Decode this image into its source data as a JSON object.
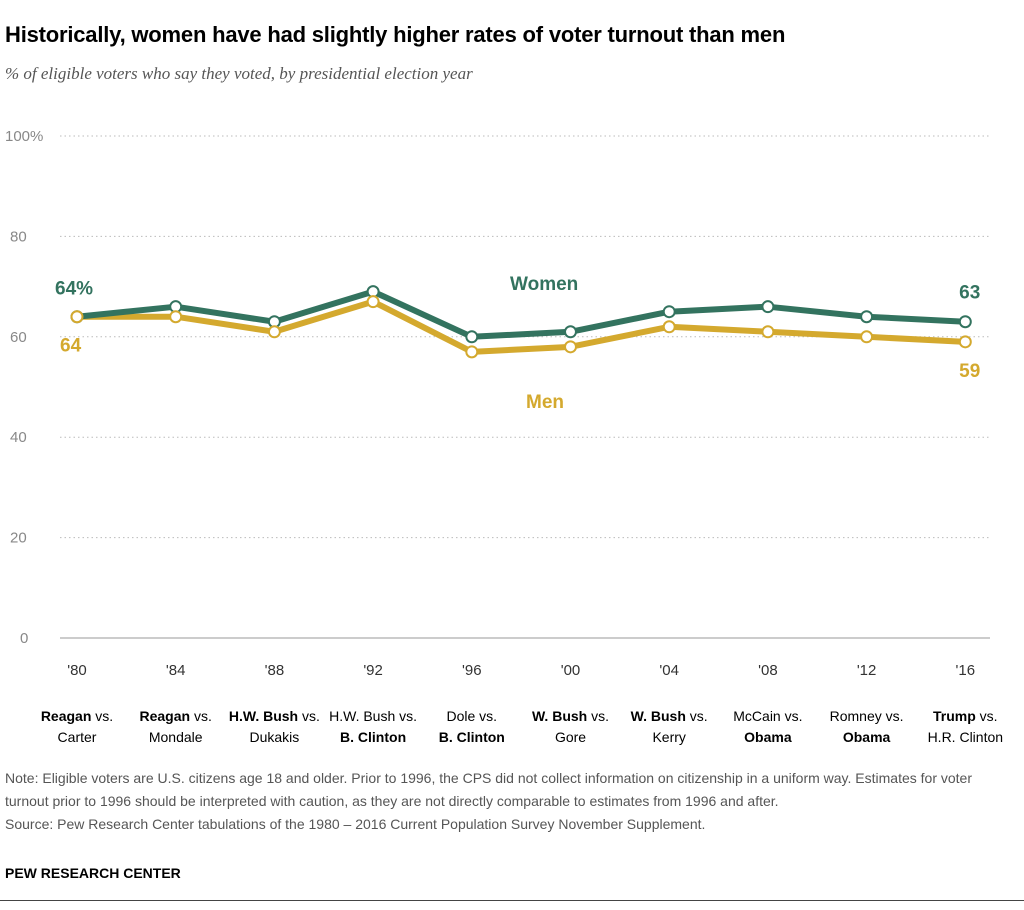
{
  "title": "Historically, women have had slightly higher rates of voter turnout than men",
  "subtitle": "% of eligible voters who say they voted, by presidential election year",
  "chart_data": {
    "type": "line",
    "categories": [
      "'80",
      "'84",
      "'88",
      "'92",
      "'96",
      "'00",
      "'04",
      "'08",
      "'12",
      "'16"
    ],
    "matchups": [
      [
        {
          "t": "Reagan",
          "b": true
        },
        {
          "t": " vs.",
          "b": false
        },
        {
          "t": "\n",
          "b": false
        },
        {
          "t": "Carter",
          "b": false
        }
      ],
      [
        {
          "t": "Reagan",
          "b": true
        },
        {
          "t": " vs.",
          "b": false
        },
        {
          "t": "\n",
          "b": false
        },
        {
          "t": "Mondale",
          "b": false
        }
      ],
      [
        {
          "t": "H.W. Bush",
          "b": true
        },
        {
          "t": " vs.",
          "b": false
        },
        {
          "t": "\n",
          "b": false
        },
        {
          "t": "Dukakis",
          "b": false
        }
      ],
      [
        {
          "t": "H.W. Bush vs.",
          "b": false
        },
        {
          "t": "\n",
          "b": false
        },
        {
          "t": "B. Clinton",
          "b": true
        }
      ],
      [
        {
          "t": "Dole vs.",
          "b": false
        },
        {
          "t": "\n",
          "b": false
        },
        {
          "t": "B. Clinton",
          "b": true
        }
      ],
      [
        {
          "t": "W. Bush",
          "b": true
        },
        {
          "t": " vs.",
          "b": false
        },
        {
          "t": "\n",
          "b": false
        },
        {
          "t": "Gore",
          "b": false
        }
      ],
      [
        {
          "t": "W. Bush",
          "b": true
        },
        {
          "t": " vs.",
          "b": false
        },
        {
          "t": "\n",
          "b": false
        },
        {
          "t": "Kerry",
          "b": false
        }
      ],
      [
        {
          "t": "McCain vs.",
          "b": false
        },
        {
          "t": "\n",
          "b": false
        },
        {
          "t": "Obama",
          "b": true
        }
      ],
      [
        {
          "t": "Romney vs.",
          "b": false
        },
        {
          "t": "\n",
          "b": false
        },
        {
          "t": "Obama",
          "b": true
        }
      ],
      [
        {
          "t": "Trump",
          "b": true
        },
        {
          "t": " vs.",
          "b": false
        },
        {
          "t": "\n",
          "b": false
        },
        {
          "t": "H.R. Clinton",
          "b": false
        }
      ]
    ],
    "series": [
      {
        "name": "Women",
        "color": "#33735f",
        "values": [
          64,
          66,
          63,
          69,
          60,
          61,
          65,
          66,
          64,
          63
        ],
        "first_label": "64%",
        "last_label": "63"
      },
      {
        "name": "Men",
        "color": "#d4a92e",
        "values": [
          64,
          64,
          61,
          67,
          57,
          58,
          62,
          61,
          60,
          59
        ],
        "first_label": "64",
        "last_label": "59"
      }
    ],
    "ylim": [
      0,
      100
    ],
    "yticks": [
      {
        "v": 0,
        "label": "0"
      },
      {
        "v": 20,
        "label": "20"
      },
      {
        "v": 40,
        "label": "40"
      },
      {
        "v": 60,
        "label": "60"
      },
      {
        "v": 80,
        "label": "80"
      },
      {
        "v": 100,
        "label": "100%"
      }
    ],
    "grid": true
  },
  "note": "Note: Eligible voters are U.S. citizens age 18 and older. Prior to 1996, the CPS did not collect information on citizenship in a uniform way. Estimates for voter turnout prior to 1996 should be interpreted with caution, as they are not directly comparable to estimates from 1996 and after.",
  "source": "Source: Pew Research Center tabulations of the 1980 – 2016 Current Population Survey November Supplement.",
  "brand": "PEW RESEARCH CENTER"
}
